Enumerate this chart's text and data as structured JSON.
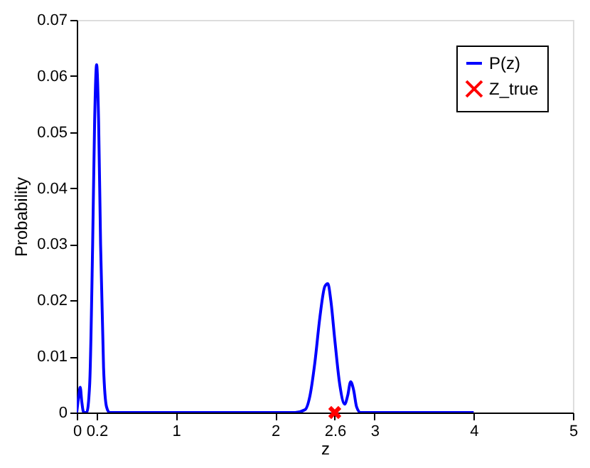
{
  "chart_data": {
    "type": "line",
    "xlabel": "z",
    "ylabel": "Probability",
    "xlim": [
      0,
      5
    ],
    "xticks": [
      0,
      0.2,
      1,
      2,
      2.6,
      3,
      4,
      5
    ],
    "ylim": [
      0,
      0.07
    ],
    "yticks": [
      0,
      0.01,
      0.02,
      0.03,
      0.04,
      0.05,
      0.06,
      0.07
    ],
    "grid": false,
    "legend": "top right",
    "series": [
      {
        "name": "P(z)",
        "color": "#0000ff",
        "marker": "none",
        "line_style": "solid",
        "x": [
          0,
          0.02,
          0.035,
          0.05,
          0.07,
          0.1,
          0.13,
          0.16,
          0.18,
          0.2,
          0.22,
          0.24,
          0.27,
          0.3,
          0.33,
          0.5,
          1,
          2,
          2.2,
          2.3,
          2.35,
          2.4,
          2.45,
          2.5,
          2.53,
          2.56,
          2.6,
          2.65,
          2.7,
          2.73,
          2.76,
          2.79,
          2.82,
          2.86,
          2.9,
          3,
          4
        ],
        "values": [
          0,
          0.003,
          0.0045,
          0.002,
          0,
          0,
          0.005,
          0.03,
          0.052,
          0.062,
          0.052,
          0.03,
          0.008,
          0.001,
          0,
          0,
          0,
          0,
          0,
          0.0005,
          0.003,
          0.009,
          0.017,
          0.0225,
          0.023,
          0.02,
          0.013,
          0.005,
          0.0015,
          0.003,
          0.0055,
          0.004,
          0.001,
          0,
          0,
          0,
          0
        ]
      },
      {
        "name": "Z_true",
        "type": "scatter",
        "color": "#ff0000",
        "marker": "cross",
        "x": [
          2.6
        ],
        "values": [
          0
        ]
      }
    ]
  }
}
